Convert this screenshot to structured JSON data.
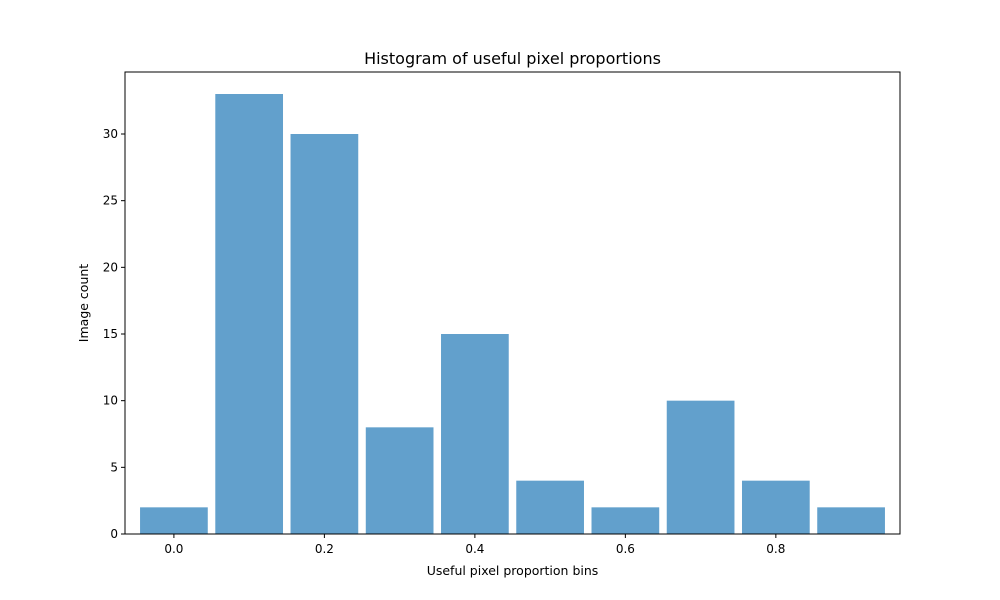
{
  "chart_data": {
    "type": "bar",
    "title": "Histogram of useful pixel proportions",
    "xlabel": "Useful pixel proportion bins",
    "ylabel": "Image count",
    "bar_color": "#62a0cc",
    "bin_width": 0.1,
    "bar_width": 0.09,
    "xlim": [
      -0.065,
      0.965
    ],
    "ylim": [
      0,
      34.65
    ],
    "grid": false,
    "x_ticks": [
      {
        "value": 0.0,
        "label": "0.0"
      },
      {
        "value": 0.2,
        "label": "0.2"
      },
      {
        "value": 0.4,
        "label": "0.4"
      },
      {
        "value": 0.6,
        "label": "0.6"
      },
      {
        "value": 0.8,
        "label": "0.8"
      }
    ],
    "y_ticks": [
      {
        "value": 0,
        "label": "0"
      },
      {
        "value": 5,
        "label": "5"
      },
      {
        "value": 10,
        "label": "10"
      },
      {
        "value": 15,
        "label": "15"
      },
      {
        "value": 20,
        "label": "20"
      },
      {
        "value": 25,
        "label": "25"
      },
      {
        "value": 30,
        "label": "30"
      }
    ],
    "bins": [
      {
        "x": 0.0,
        "count": 2
      },
      {
        "x": 0.1,
        "count": 33
      },
      {
        "x": 0.2,
        "count": 30
      },
      {
        "x": 0.3,
        "count": 8
      },
      {
        "x": 0.4,
        "count": 15
      },
      {
        "x": 0.5,
        "count": 4
      },
      {
        "x": 0.6,
        "count": 2
      },
      {
        "x": 0.7,
        "count": 10
      },
      {
        "x": 0.8,
        "count": 4
      },
      {
        "x": 0.9,
        "count": 2
      }
    ]
  }
}
